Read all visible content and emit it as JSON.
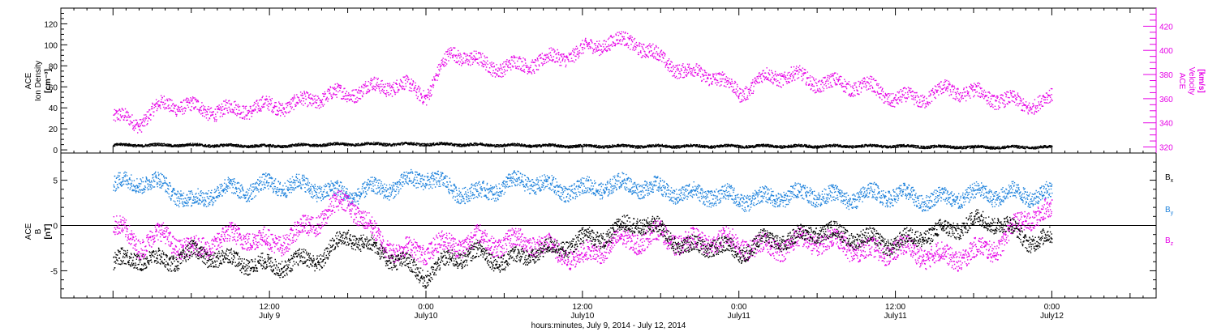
{
  "chart_data": [
    {
      "type": "scatter",
      "panel": "top",
      "ylabel_left": [
        "ACE",
        "Ion Density",
        "[cm⁻³]"
      ],
      "ylabel_right": [
        "ACE",
        "Velocity",
        "[km/s]"
      ],
      "ylim_left": [
        -3,
        135
      ],
      "yticks_left": [
        0,
        20,
        40,
        60,
        80,
        100,
        120
      ],
      "ylim_right": [
        315,
        435
      ],
      "yticks_right": [
        320,
        340,
        360,
        380,
        400,
        420
      ],
      "series": [
        {
          "name": "",
          "axis": "right",
          "color": "#e600e6",
          "x_hours": [
            0,
            2,
            4,
            6,
            8,
            10,
            12,
            14,
            16,
            18,
            20,
            22,
            24,
            26,
            28,
            30,
            32,
            34,
            36,
            38,
            40,
            42,
            44,
            46,
            48,
            50,
            52,
            54,
            56,
            58,
            60,
            62,
            64,
            66,
            68,
            70,
            72
          ],
          "values": [
            345,
            341,
            357,
            353,
            350,
            352,
            354,
            356,
            362,
            365,
            370,
            372,
            364,
            400,
            390,
            386,
            390,
            394,
            400,
            408,
            407,
            393,
            382,
            380,
            365,
            378,
            380,
            374,
            372,
            370,
            360,
            361,
            368,
            365,
            360,
            355,
            360
          ]
        },
        {
          "name": "",
          "axis": "left",
          "color": "#000000",
          "x_hours": [
            0,
            6,
            12,
            18,
            24,
            30,
            36,
            42,
            48,
            54,
            60,
            66,
            72
          ],
          "values": [
            5,
            5,
            4,
            6,
            6,
            5,
            4,
            4,
            4,
            4,
            4,
            3,
            3
          ]
        }
      ]
    },
    {
      "type": "scatter",
      "panel": "bottom",
      "ylabel_left": [
        "ACE",
        "B",
        "[nT]"
      ],
      "ylim": [
        -8.0,
        8.0
      ],
      "yticks": [
        -5,
        0,
        5
      ],
      "zero_line": true,
      "legend_position": "right",
      "series": [
        {
          "name": "Bx",
          "color": "#000000",
          "x_hours": [
            0,
            2,
            4,
            6,
            8,
            10,
            12,
            14,
            16,
            18,
            20,
            22,
            24,
            26,
            28,
            30,
            32,
            34,
            36,
            38,
            40,
            42,
            44,
            46,
            48,
            50,
            52,
            54,
            56,
            58,
            60,
            62,
            64,
            66,
            68,
            70,
            72
          ],
          "values": [
            -4,
            -3.5,
            -4,
            -3,
            -3.5,
            -4,
            -4.5,
            -4,
            -3.5,
            -1,
            -2.5,
            -4,
            -5.5,
            -3.5,
            -3,
            -4,
            -3,
            -2.5,
            -1.5,
            -1,
            0.5,
            -0.5,
            -2.5,
            -2,
            -3,
            -1.5,
            -1.5,
            -0.5,
            -1,
            -1.5,
            -2,
            -1,
            -0.5,
            0.5,
            0.5,
            -1.5,
            -1.5
          ]
        },
        {
          "name": "By",
          "color": "#1e82dc",
          "x_hours": [
            0,
            2,
            4,
            6,
            8,
            10,
            12,
            14,
            16,
            18,
            20,
            22,
            24,
            26,
            28,
            30,
            32,
            34,
            36,
            38,
            40,
            42,
            44,
            46,
            48,
            50,
            52,
            54,
            56,
            58,
            60,
            62,
            64,
            66,
            68,
            70,
            72
          ],
          "values": [
            4.5,
            5,
            4.5,
            2.5,
            4,
            4,
            4.5,
            4.5,
            4,
            3.5,
            4,
            4.5,
            5.5,
            4,
            3.5,
            4.5,
            5,
            4,
            4,
            4.5,
            4.5,
            4,
            3.5,
            3.5,
            3,
            3,
            3.5,
            3.5,
            3,
            3.5,
            3.5,
            3,
            3,
            3.5,
            3.5,
            3.5,
            3.5
          ]
        },
        {
          "name": "Bz",
          "color": "#e600e6",
          "x_hours": [
            0,
            2,
            4,
            6,
            8,
            10,
            12,
            14,
            16,
            18,
            20,
            22,
            24,
            26,
            28,
            30,
            32,
            34,
            36,
            38,
            40,
            42,
            44,
            46,
            48,
            50,
            52,
            54,
            56,
            58,
            60,
            62,
            64,
            66,
            68,
            70,
            72
          ],
          "values": [
            0,
            -2,
            -1,
            -3,
            -1.5,
            -1,
            -2,
            -1,
            1,
            3,
            -1,
            -3,
            -2.5,
            -2,
            -1.5,
            -2,
            -1.5,
            -3,
            -3.5,
            -2,
            -1.5,
            -1,
            -2,
            -1.5,
            -2,
            -2.5,
            -2,
            -1.5,
            -2,
            -3,
            -2.5,
            -3,
            -3.5,
            -3,
            -2,
            1,
            1.5
          ]
        }
      ]
    }
  ],
  "axes": {
    "x_range_hours": [
      -4,
      80
    ],
    "major_ticks": [
      {
        "hour": 12,
        "line1": "12:00",
        "line2": "July 9"
      },
      {
        "hour": 24,
        "line1": "0:00",
        "line2": "July10"
      },
      {
        "hour": 36,
        "line1": "12:00",
        "line2": "July10"
      },
      {
        "hour": 48,
        "line1": "0:00",
        "line2": "July11"
      },
      {
        "hour": 60,
        "line1": "12:00",
        "line2": "July11"
      },
      {
        "hour": 72,
        "line1": "0:00",
        "line2": "July12"
      }
    ],
    "xlabel": "hours:minutes, July  9, 2014 - July 12, 2014"
  },
  "legend": {
    "bx": {
      "main": "B",
      "sub": "x",
      "color": "#000000"
    },
    "by": {
      "main": "B",
      "sub": "y",
      "color": "#1e82dc"
    },
    "bz": {
      "main": "B",
      "sub": "z",
      "color": "#e600e6"
    }
  },
  "colors": {
    "magenta": "#e600e6",
    "blue": "#1e82dc",
    "black": "#000000"
  }
}
